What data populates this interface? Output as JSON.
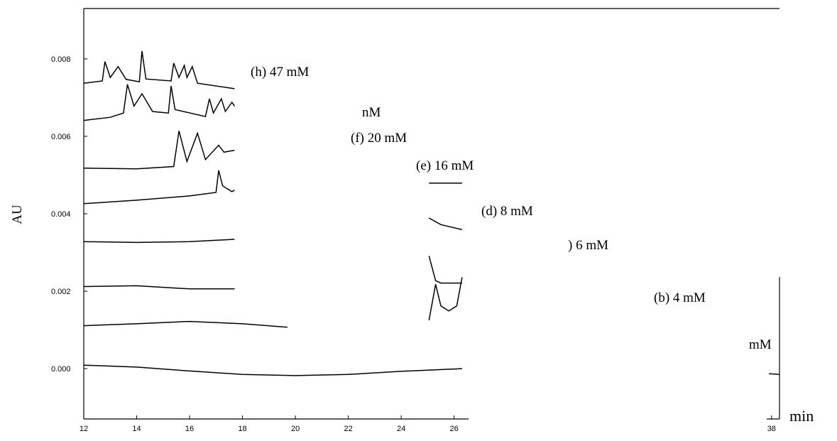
{
  "chart_data": {
    "type": "line",
    "ylabel": "AU",
    "xlabel": "min",
    "xlim": [
      12,
      38.3
    ],
    "ylim": [
      -0.0013,
      0.0093
    ],
    "xticks": [
      12,
      14,
      16,
      18,
      20,
      22,
      24,
      26,
      38
    ],
    "yticks": [
      {
        "value": 0,
        "label": "0.000"
      },
      0.002,
      0.004,
      0.006,
      0.008
    ],
    "annotations": [
      "(h) 47 mM",
      "nM",
      "(f) 20 mM",
      "(e) 16 mM",
      "(d) 8 mM",
      ") 6 mM",
      "(b) 4 mM",
      "mM"
    ],
    "series": [
      {
        "color": "#000000",
        "x": [
          12,
          12.7,
          12.8,
          13.0,
          13.3,
          13.6,
          14.1,
          14.2,
          14.35,
          15.3,
          15.4,
          15.6,
          15.8,
          15.9,
          16.1,
          16.3,
          17.7
        ],
        "values": [
          0.00737,
          0.00743,
          0.00793,
          0.00752,
          0.0078,
          0.00747,
          0.00741,
          0.0082,
          0.00748,
          0.00743,
          0.00789,
          0.00752,
          0.00783,
          0.00752,
          0.0078,
          0.00737,
          0.00723
        ]
      },
      {
        "color": "#000000",
        "x": [
          12,
          13,
          13.5,
          13.65,
          13.9,
          14.2,
          14.6,
          15.2,
          15.3,
          15.45,
          16.6,
          16.75,
          16.9,
          17.2,
          17.35,
          17.6,
          17.7
        ],
        "values": [
          0.00641,
          0.00649,
          0.0066,
          0.00734,
          0.00678,
          0.0071,
          0.00664,
          0.0066,
          0.0073,
          0.00669,
          0.00651,
          0.00697,
          0.0066,
          0.00697,
          0.00664,
          0.00688,
          0.00678
        ]
      },
      {
        "color": "#000000",
        "x": [
          12,
          14,
          15.4,
          15.6,
          15.9,
          16.3,
          16.6,
          17.1,
          17.3,
          17.7
        ],
        "values": [
          0.00518,
          0.00516,
          0.00522,
          0.00614,
          0.00535,
          0.00608,
          0.0054,
          0.00577,
          0.00559,
          0.00564
        ]
      },
      {
        "color": "#000000",
        "x": [
          12,
          14,
          16,
          17,
          17.1,
          17.25,
          17.6,
          17.7,
          25.0,
          25.05,
          26.3
        ],
        "values": [
          0.00426,
          0.00435,
          0.00446,
          0.00455,
          0.00512,
          0.00472,
          0.00457,
          0.00461,
          null,
          0.00479,
          0.00479
        ]
      },
      {
        "color": "#000000",
        "x": [
          12,
          14,
          16,
          17.7,
          25.0,
          25.05,
          25.5,
          26.3
        ],
        "values": [
          0.00328,
          0.00326,
          0.00328,
          0.00334,
          null,
          0.00389,
          0.00372,
          0.00359
        ]
      },
      {
        "color": "#000000",
        "x": [
          12,
          14,
          16,
          17.7,
          25.0,
          25.05,
          25.3,
          25.5,
          26.3
        ],
        "values": [
          0.00212,
          0.00214,
          0.00206,
          0.00206,
          null,
          0.00291,
          0.00227,
          0.00221,
          0.00221
        ]
      },
      {
        "color": "#000000",
        "x": [
          25.05,
          25.3,
          25.5,
          25.8,
          26.1,
          26.3
        ],
        "values": [
          0.00125,
          0.00218,
          0.00162,
          0.00149,
          0.00162,
          0.00236
        ]
      },
      {
        "color": "#000000",
        "x": [
          12,
          14,
          16,
          18,
          19.7
        ],
        "values": [
          0.00111,
          0.00116,
          0.00122,
          0.00116,
          0.00107
        ]
      },
      {
        "color": "#000000",
        "x": [
          12,
          14,
          16,
          18,
          20,
          22,
          24,
          25,
          26.3,
          30,
          37.9,
          38.3
        ],
        "values": [
          9e-05,
          4e-05,
          -6e-05,
          -0.00015,
          -0.00018,
          -0.00015,
          -7e-05,
          -4e-05,
          0,
          null,
          -0.00013,
          -0.00015
        ]
      }
    ]
  }
}
